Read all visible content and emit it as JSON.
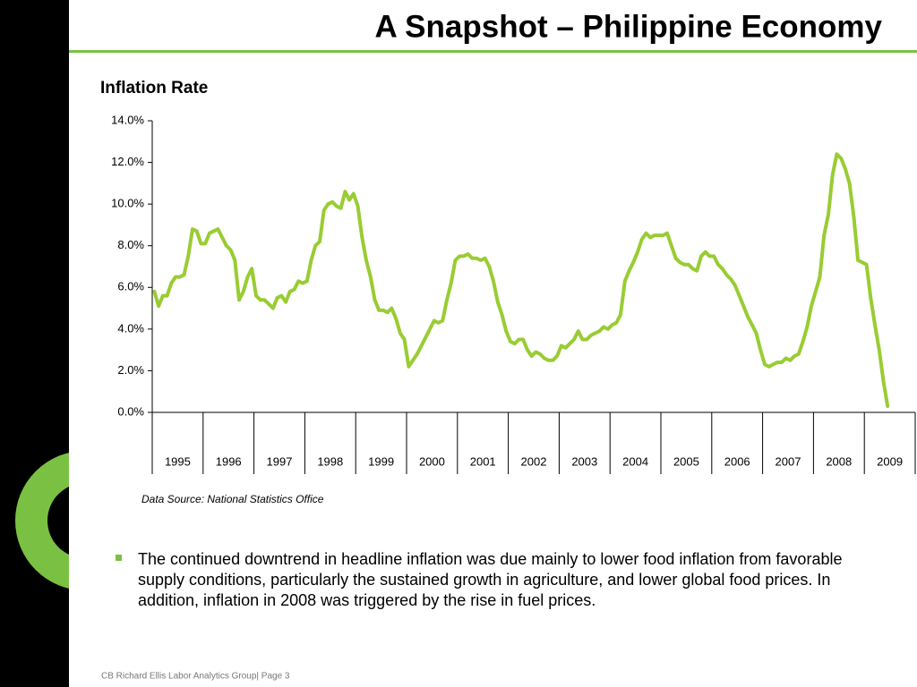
{
  "header": {
    "title": "A Snapshot – Philippine Economy"
  },
  "chart_data": {
    "type": "line",
    "title": "Inflation Rate",
    "categories": [
      "1995",
      "1996",
      "1997",
      "1998",
      "1999",
      "2000",
      "2001",
      "2002",
      "2003",
      "2004",
      "2005",
      "2006",
      "2007",
      "2008",
      "2009"
    ],
    "series": [
      {
        "color": "#99cc33",
        "values": [
          [
            5.8,
            5.1,
            5.6,
            5.6,
            6.2,
            6.5,
            6.5,
            6.6,
            7.5,
            8.8,
            8.7,
            8.1
          ],
          [
            8.1,
            8.6,
            8.7,
            8.8,
            8.4,
            8.0,
            7.8,
            7.3,
            5.4,
            5.8,
            6.5,
            6.9
          ],
          [
            5.6,
            5.4,
            5.4,
            5.2,
            5.0,
            5.5,
            5.6,
            5.3,
            5.8,
            5.9,
            6.3,
            6.2
          ],
          [
            6.3,
            7.3,
            8.0,
            8.2,
            9.7,
            10.0,
            10.1,
            9.9,
            9.8,
            10.6,
            10.2,
            10.5
          ],
          [
            9.9,
            8.4,
            7.3,
            6.5,
            5.4,
            4.9,
            4.9,
            4.8,
            5.0,
            4.5,
            3.8,
            3.5
          ],
          [
            2.2,
            2.5,
            2.8,
            3.2,
            3.6,
            4.0,
            4.4,
            4.3,
            4.4,
            5.4,
            6.2,
            7.3
          ],
          [
            7.5,
            7.5,
            7.6,
            7.4,
            7.4,
            7.3,
            7.4,
            7.0,
            6.3,
            5.3,
            4.7,
            3.9
          ],
          [
            3.4,
            3.3,
            3.5,
            3.5,
            3.0,
            2.7,
            2.9,
            2.8,
            2.6,
            2.5,
            2.5,
            2.7
          ],
          [
            3.2,
            3.1,
            3.3,
            3.5,
            3.9,
            3.5,
            3.5,
            3.7,
            3.8,
            3.9,
            4.1,
            4.0
          ],
          [
            4.2,
            4.3,
            4.7,
            6.3,
            6.8,
            7.2,
            7.7,
            8.3,
            8.6,
            8.4,
            8.5,
            8.5
          ],
          [
            8.5,
            8.6,
            8.0,
            7.4,
            7.2,
            7.1,
            7.1,
            6.9,
            6.8,
            7.5,
            7.7,
            7.5
          ],
          [
            7.5,
            7.1,
            6.9,
            6.6,
            6.4,
            6.1,
            5.6,
            5.1,
            4.6,
            4.2,
            3.8,
            3.0
          ],
          [
            2.3,
            2.2,
            2.3,
            2.4,
            2.4,
            2.6,
            2.5,
            2.7,
            2.8,
            3.4,
            4.1,
            5.1
          ],
          [
            5.8,
            6.5,
            8.5,
            9.5,
            11.4,
            12.4,
            12.2,
            11.7,
            11.0,
            9.4,
            7.3,
            7.2
          ],
          [
            7.1,
            5.5,
            4.2,
            3.0,
            1.5,
            0.3
          ]
        ]
      }
    ],
    "ylim": [
      0,
      14
    ],
    "yticks": [
      {
        "value": 0,
        "label": "0.0%"
      },
      {
        "value": 2,
        "label": "2.0%"
      },
      {
        "value": 4,
        "label": "4.0%"
      },
      {
        "value": 6,
        "label": "6.0%"
      },
      {
        "value": 8,
        "label": "8.0%"
      },
      {
        "value": 10,
        "label": "10.0%"
      },
      {
        "value": 12,
        "label": "12.0%"
      },
      {
        "value": 14,
        "label": "14.0%"
      }
    ],
    "source": "Data Source: National Statistics Office"
  },
  "bullet": "The continued downtrend in headline inflation was due mainly to lower food inflation from favorable supply conditions, particularly the sustained growth in agriculture, and lower global food prices. In addition, inflation in 2008 was triggered by the rise in fuel prices.",
  "footer": "CB Richard Ellis Labor Analytics Group| Page 3"
}
